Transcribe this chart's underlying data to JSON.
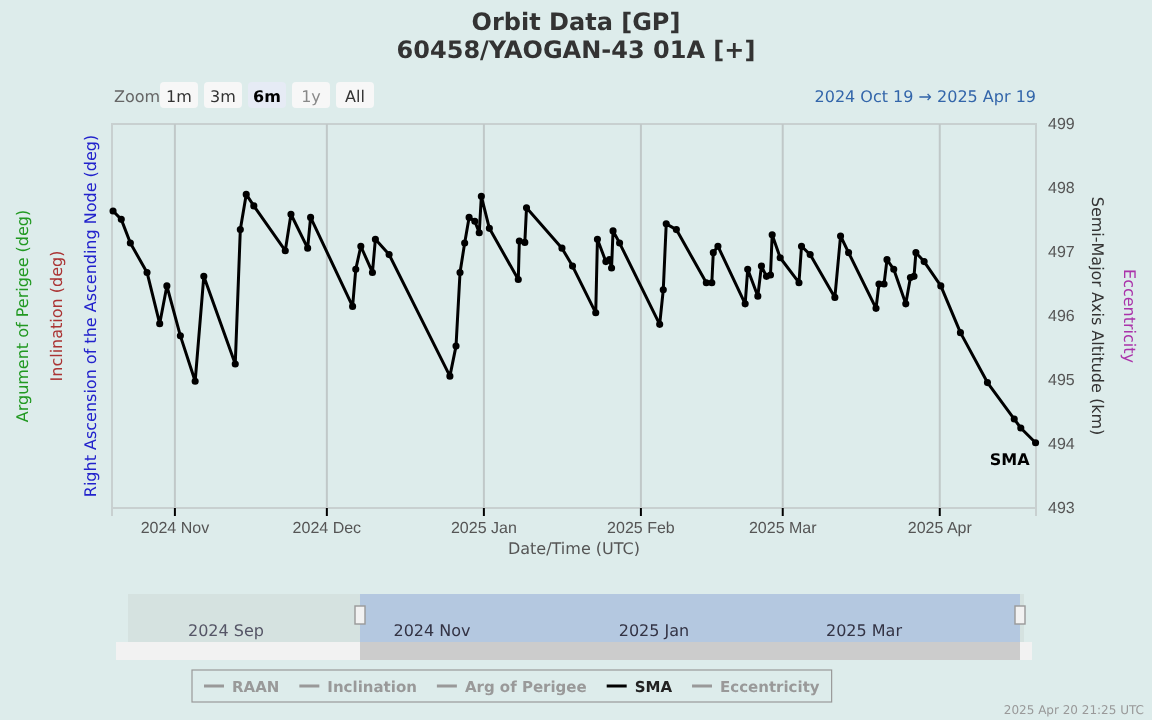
{
  "chart_data": {
    "type": "line",
    "title": "Orbit Data [GP]",
    "subtitle": "60458/YAOGAN-43 01A [+]",
    "xlabel": "Date/Time (UTC)",
    "ylabel": "Semi-Major Axis Altitude (km)",
    "x": [
      "2024-10-19T19:00",
      "2024-10-21T10:00",
      "2024-10-23T05:00",
      "2024-10-26T12:00",
      "2024-10-29T00:00",
      "2024-10-30T10:00",
      "2024-11-02T02:00",
      "2024-11-05T00:00",
      "2024-11-06T17:00",
      "2024-11-12T22:00",
      "2024-11-13T22:00",
      "2024-11-15T02:00",
      "2024-11-16T14:00",
      "2024-11-22T19:00",
      "2024-11-23T22:00",
      "2024-11-27T05:00",
      "2024-11-27T19:00",
      "2024-12-06T02:00",
      "2024-12-06T17:00",
      "2024-12-07T17:00",
      "2024-12-10T00:00",
      "2024-12-10T14:00",
      "2024-12-13T07:00",
      "2024-12-25T07:00",
      "2024-12-26T12:00",
      "2024-12-27T07:00",
      "2024-12-28T05:00",
      "2024-12-29T02:00",
      "2024-12-30T05:00",
      "2024-12-31T02:00",
      "2024-12-31T12:00",
      "2025-01-02T02:00",
      "2025-01-07T19:00",
      "2025-01-08T00:00",
      "2025-01-09T02:00",
      "2025-01-09T10:00",
      "2025-01-16T10:00",
      "2025-01-18T12:00",
      "2025-01-23T02:00",
      "2025-01-23T10:00",
      "2025-01-25T02:00",
      "2025-01-25T19:00",
      "2025-01-26T05:00",
      "2025-01-26T12:00",
      "2025-01-27T19:00",
      "2025-02-04T17:00",
      "2025-02-05T10:00",
      "2025-02-06T00:00",
      "2025-02-08T00:00",
      "2025-02-13T22:00",
      "2025-02-15T00:00",
      "2025-02-15T07:00",
      "2025-02-16T05:00",
      "2025-02-21T14:00",
      "2025-02-22T02:00",
      "2025-02-24T02:00",
      "2025-02-24T19:00",
      "2025-02-25T19:00",
      "2025-02-26T14:00",
      "2025-02-26T22:00",
      "2025-02-28T12:00",
      "2025-03-04T05:00",
      "2025-03-04T17:00",
      "2025-03-06T10:00",
      "2025-03-11T07:00",
      "2025-03-12T10:00",
      "2025-03-14T00:00",
      "2025-03-19T10:00",
      "2025-03-20T00:00",
      "2025-03-21T00:00",
      "2025-03-21T14:00",
      "2025-03-22T22:00",
      "2025-03-25T07:00",
      "2025-03-26T05:00",
      "2025-03-26T22:00",
      "2025-03-27T07:00",
      "2025-03-28T22:00",
      "2025-04-01T05:00",
      "2025-04-05T02:00",
      "2025-04-10T10:00",
      "2025-04-15T17:00",
      "2025-04-17T00:00",
      "2025-04-19T22:00"
    ],
    "series": [
      {
        "name": "RAAN",
        "color": "#999999",
        "values": [
          null,
          null,
          null,
          null,
          null,
          null,
          null,
          null,
          null,
          null,
          null,
          null,
          null,
          null,
          null,
          null,
          null,
          null,
          null,
          null,
          null,
          null,
          null,
          null,
          null,
          null,
          null,
          null,
          null,
          null,
          null,
          null,
          null,
          null,
          null,
          null,
          null,
          null,
          null,
          null,
          null,
          null,
          null,
          null,
          null,
          null,
          null,
          null,
          null,
          null,
          null,
          null,
          null,
          null,
          null,
          null,
          null,
          null,
          null,
          null,
          null,
          null,
          null,
          null,
          null,
          null,
          null,
          null,
          null,
          null,
          null,
          null,
          null,
          null,
          null,
          null,
          null,
          null,
          null,
          null,
          null,
          null,
          null
        ]
      },
      {
        "name": "Inclination",
        "color": "#999999",
        "values": [
          null,
          null,
          null,
          null,
          null,
          null,
          null,
          null,
          null,
          null,
          null,
          null,
          null,
          null,
          null,
          null,
          null,
          null,
          null,
          null,
          null,
          null,
          null,
          null,
          null,
          null,
          null,
          null,
          null,
          null,
          null,
          null,
          null,
          null,
          null,
          null,
          null,
          null,
          null,
          null,
          null,
          null,
          null,
          null,
          null,
          null,
          null,
          null,
          null,
          null,
          null,
          null,
          null,
          null,
          null,
          null,
          null,
          null,
          null,
          null,
          null,
          null,
          null,
          null,
          null,
          null,
          null,
          null,
          null,
          null,
          null,
          null,
          null,
          null,
          null,
          null,
          null,
          null,
          null,
          null,
          null,
          null,
          null
        ]
      },
      {
        "name": "Arg of Perigee",
        "color": "#999999",
        "values": [
          null,
          null,
          null,
          null,
          null,
          null,
          null,
          null,
          null,
          null,
          null,
          null,
          null,
          null,
          null,
          null,
          null,
          null,
          null,
          null,
          null,
          null,
          null,
          null,
          null,
          null,
          null,
          null,
          null,
          null,
          null,
          null,
          null,
          null,
          null,
          null,
          null,
          null,
          null,
          null,
          null,
          null,
          null,
          null,
          null,
          null,
          null,
          null,
          null,
          null,
          null,
          null,
          null,
          null,
          null,
          null,
          null,
          null,
          null,
          null,
          null,
          null,
          null,
          null,
          null,
          null,
          null,
          null,
          null,
          null,
          null,
          null,
          null,
          null,
          null,
          null,
          null,
          null,
          null,
          null,
          null,
          null,
          null
        ]
      },
      {
        "name": "SMA",
        "color": "#000000",
        "values": [
          497.64,
          497.51,
          497.14,
          496.68,
          495.88,
          496.47,
          495.69,
          494.98,
          496.62,
          495.25,
          497.35,
          497.9,
          497.72,
          497.02,
          497.59,
          497.06,
          497.54,
          496.15,
          496.73,
          497.09,
          496.68,
          497.2,
          496.96,
          495.06,
          495.53,
          496.68,
          497.14,
          497.54,
          497.48,
          497.3,
          497.87,
          497.37,
          496.57,
          497.17,
          497.15,
          497.69,
          497.06,
          496.78,
          496.05,
          497.2,
          496.85,
          496.88,
          496.75,
          497.33,
          497.14,
          495.87,
          496.41,
          497.44,
          497.35,
          496.52,
          496.52,
          496.99,
          497.09,
          496.19,
          496.73,
          496.31,
          496.78,
          496.62,
          496.64,
          497.27,
          496.91,
          496.52,
          497.09,
          496.96,
          496.29,
          497.25,
          496.99,
          496.12,
          496.5,
          496.5,
          496.88,
          496.73,
          496.19,
          496.6,
          496.62,
          496.99,
          496.85,
          496.47,
          495.74,
          494.96,
          494.39,
          494.25,
          494.02
        ]
      },
      {
        "name": "Eccentricity",
        "color": "#999999",
        "values": [
          null,
          null,
          null,
          null,
          null,
          null,
          null,
          null,
          null,
          null,
          null,
          null,
          null,
          null,
          null,
          null,
          null,
          null,
          null,
          null,
          null,
          null,
          null,
          null,
          null,
          null,
          null,
          null,
          null,
          null,
          null,
          null,
          null,
          null,
          null,
          null,
          null,
          null,
          null,
          null,
          null,
          null,
          null,
          null,
          null,
          null,
          null,
          null,
          null,
          null,
          null,
          null,
          null,
          null,
          null,
          null,
          null,
          null,
          null,
          null,
          null,
          null,
          null,
          null,
          null,
          null,
          null,
          null,
          null,
          null,
          null,
          null,
          null,
          null,
          null,
          null,
          null,
          null,
          null,
          null,
          null,
          null,
          null
        ]
      }
    ],
    "xlim": [
      "2024-10-19T14:00",
      "2025-04-20T00:00"
    ],
    "xticks": [
      {
        "value": "2024-11-01",
        "label": "2024 Nov"
      },
      {
        "value": "2024-12-01",
        "label": "2024 Dec"
      },
      {
        "value": "2025-01-01",
        "label": "2025 Jan"
      },
      {
        "value": "2025-02-01",
        "label": "2025 Feb"
      },
      {
        "value": "2025-03-01",
        "label": "2025 Mar"
      },
      {
        "value": "2025-04-01",
        "label": "2025 Apr"
      }
    ],
    "ylim": [
      493,
      499
    ],
    "yticks": [
      493,
      494,
      495,
      496,
      497,
      498,
      499
    ],
    "grid": "x",
    "legend": "bottom",
    "marker": "circle",
    "line_style": "solid",
    "annotations": [
      "Zoom",
      "1m",
      "3m",
      "6m",
      "1y",
      "All",
      "2024 Oct 19 → 2025 Apr 19",
      "Right Ascension of the Ascending Node (deg)",
      "Inclination (deg)",
      "Argument of Perigee (deg)",
      "Eccentricity",
      "2024 Sep",
      "2024 Nov",
      "2025 Jan",
      "2025 Mar",
      "2025 Apr 20 21:25 UTC"
    ]
  }
}
